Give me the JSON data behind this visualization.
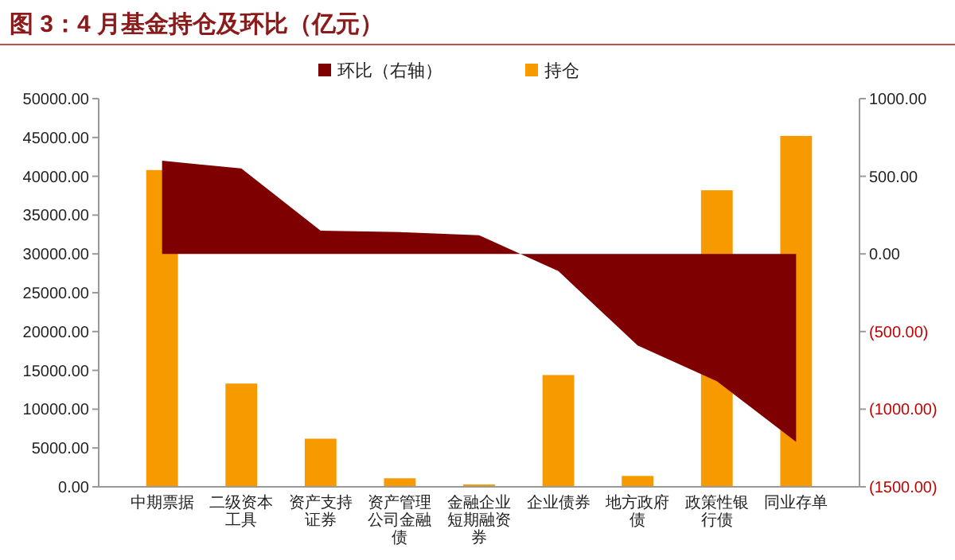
{
  "chart_data": {
    "type": "bar",
    "title": "图 3：4 月基金持仓及环比（亿元）",
    "categories": [
      "中期票据",
      "二级资本工具",
      "资产支持证券",
      "资产管理公司金融债",
      "金融企业短期融资券",
      "企业债券",
      "地方政府债",
      "政策性银行债",
      "同业存单"
    ],
    "series": [
      {
        "name": "环比（右轴）",
        "type": "area",
        "axis": "y2",
        "color": "#7f0000",
        "values": [
          600,
          550,
          150,
          140,
          120,
          -110,
          -590,
          -820,
          -1210
        ]
      },
      {
        "name": "持仓",
        "color": "#f79a00",
        "values": [
          40800,
          13300,
          6200,
          1100,
          300,
          14400,
          1400,
          38200,
          45200
        ]
      }
    ],
    "ylim": [
      0,
      50000
    ],
    "yticks": [
      {
        "value": 0,
        "label": "0.00"
      },
      {
        "value": 5000,
        "label": "5000.00"
      },
      {
        "value": 10000,
        "label": "10000.00"
      },
      {
        "value": 15000,
        "label": "15000.00"
      },
      {
        "value": 20000,
        "label": "20000.00"
      },
      {
        "value": 25000,
        "label": "25000.00"
      },
      {
        "value": 30000,
        "label": "30000.00"
      },
      {
        "value": 35000,
        "label": "35000.00"
      },
      {
        "value": 40000,
        "label": "40000.00"
      },
      {
        "value": 45000,
        "label": "45000.00"
      },
      {
        "value": 50000,
        "label": "50000.00"
      }
    ],
    "y2lim": [
      -1500,
      1000
    ],
    "y2ticks": [
      {
        "value": -1500,
        "label": "(1500.00)"
      },
      {
        "value": -1000,
        "label": "(1000.00)"
      },
      {
        "value": -500,
        "label": "(500.00)"
      },
      {
        "value": 0,
        "label": "0.00"
      },
      {
        "value": 500,
        "label": "500.00"
      },
      {
        "value": 1000,
        "label": "1000.00"
      }
    ],
    "legend": "top",
    "grid": false
  }
}
